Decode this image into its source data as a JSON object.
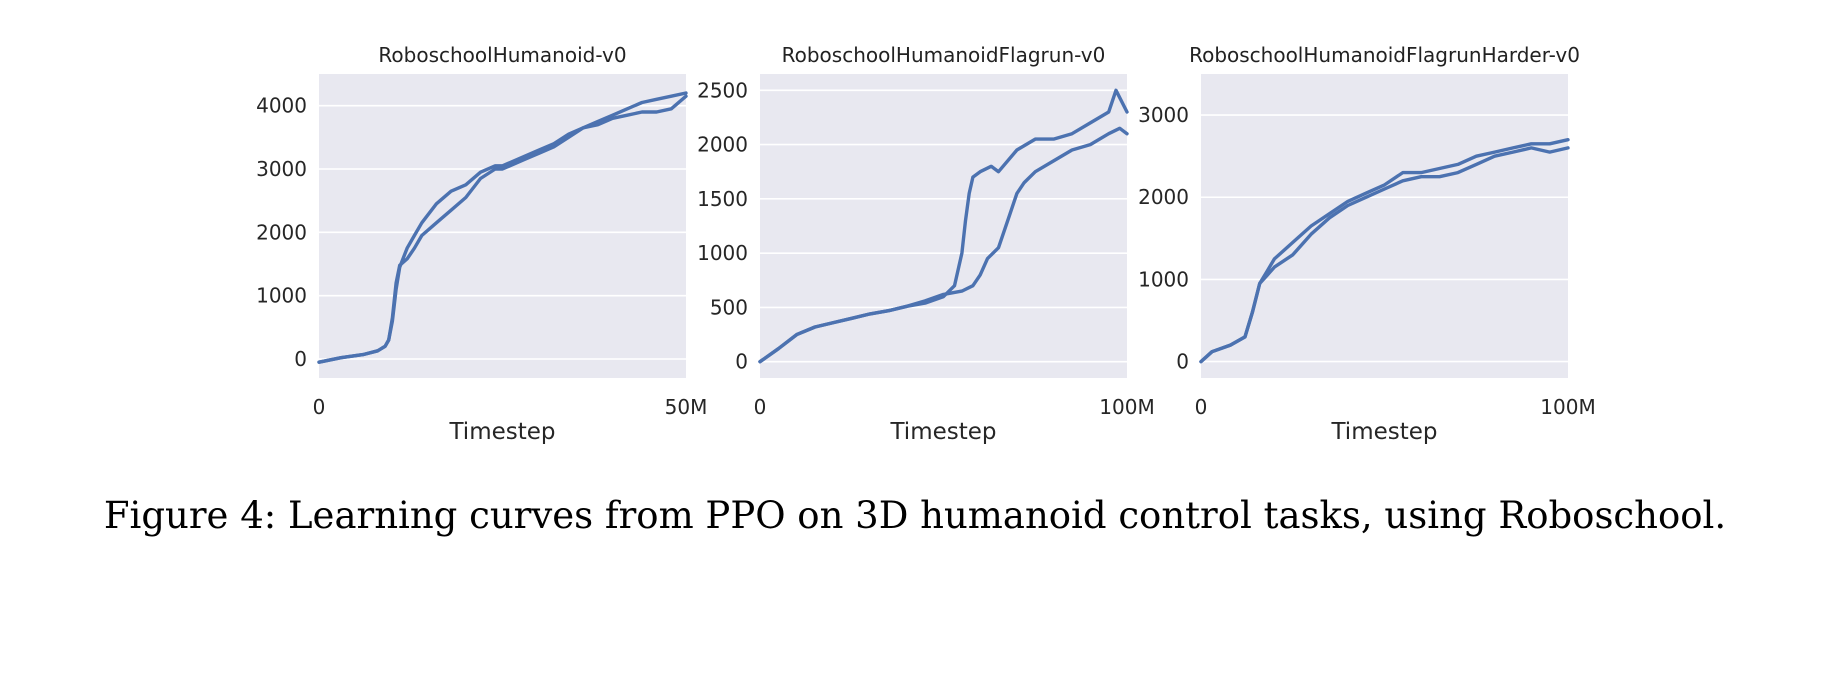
{
  "caption": "Figure 4: Learning curves from PPO on 3D humanoid control tasks, using Roboschool.",
  "colors": {
    "line": "#4c72b0",
    "background": "#e8e8f0",
    "grid": "#ffffff"
  },
  "chart_data": [
    {
      "type": "line",
      "title": "RoboschoolHumanoid-v0",
      "xlabel": "Timestep",
      "ylabel": "",
      "x_unit": "M timesteps",
      "xlim": [
        0,
        50
      ],
      "ylim": [
        -300,
        4500
      ],
      "xticks": [
        0,
        50
      ],
      "xtick_labels": [
        "0",
        "50M"
      ],
      "yticks": [
        0,
        1000,
        2000,
        3000,
        4000
      ],
      "ytick_labels": [
        "0",
        "1000",
        "2000",
        "3000",
        "4000"
      ],
      "grid": true,
      "series": [
        {
          "x": [
            0,
            3,
            6,
            8,
            9,
            9.5,
            10,
            10.5,
            11,
            12,
            13,
            14,
            16,
            18,
            20,
            22,
            24,
            25,
            28,
            30,
            32,
            34,
            36,
            38,
            40,
            42,
            44,
            46,
            48,
            50
          ],
          "y": [
            -50,
            20,
            70,
            130,
            200,
            300,
            600,
            1100,
            1450,
            1750,
            1950,
            2150,
            2450,
            2650,
            2750,
            2950,
            3050,
            3050,
            3200,
            3300,
            3400,
            3550,
            3650,
            3750,
            3850,
            3950,
            4050,
            4100,
            4150,
            4200
          ]
        },
        {
          "x": [
            0,
            3,
            6,
            8,
            9,
            9.5,
            10,
            10.5,
            11,
            12,
            13,
            14,
            16,
            18,
            20,
            22,
            24,
            25,
            28,
            30,
            32,
            34,
            36,
            38,
            40,
            42,
            44,
            46,
            48,
            50
          ],
          "y": [
            -50,
            20,
            70,
            130,
            200,
            300,
            650,
            1200,
            1480,
            1580,
            1750,
            1950,
            2150,
            2350,
            2550,
            2850,
            3000,
            3000,
            3150,
            3250,
            3350,
            3500,
            3650,
            3700,
            3800,
            3850,
            3900,
            3900,
            3950,
            4150
          ]
        }
      ]
    },
    {
      "type": "line",
      "title": "RoboschoolHumanoidFlagrun-v0",
      "xlabel": "Timestep",
      "ylabel": "",
      "x_unit": "M timesteps",
      "xlim": [
        0,
        100
      ],
      "ylim": [
        -150,
        2650
      ],
      "xticks": [
        0,
        100
      ],
      "xtick_labels": [
        "0",
        "100M"
      ],
      "yticks": [
        0,
        500,
        1000,
        1500,
        2000,
        2500
      ],
      "ytick_labels": [
        "0",
        "500",
        "1000",
        "1500",
        "2000",
        "2500"
      ],
      "grid": true,
      "series": [
        {
          "x": [
            0,
            5,
            10,
            15,
            20,
            25,
            30,
            35,
            40,
            45,
            50,
            53,
            55,
            56,
            57,
            58,
            60,
            63,
            65,
            70,
            75,
            80,
            85,
            90,
            95,
            97,
            100
          ],
          "y": [
            0,
            120,
            250,
            320,
            360,
            400,
            440,
            470,
            510,
            540,
            600,
            700,
            1000,
            1300,
            1550,
            1700,
            1750,
            1800,
            1750,
            1950,
            2050,
            2050,
            2100,
            2200,
            2300,
            2500,
            2300
          ]
        },
        {
          "x": [
            0,
            5,
            10,
            15,
            20,
            25,
            30,
            35,
            40,
            45,
            50,
            55,
            58,
            60,
            62,
            65,
            68,
            70,
            72,
            75,
            80,
            85,
            90,
            95,
            98,
            100
          ],
          "y": [
            0,
            120,
            250,
            320,
            360,
            400,
            440,
            470,
            510,
            560,
            620,
            650,
            700,
            800,
            950,
            1050,
            1350,
            1550,
            1650,
            1750,
            1850,
            1950,
            2000,
            2100,
            2150,
            2100
          ]
        }
      ]
    },
    {
      "type": "line",
      "title": "RoboschoolHumanoidFlagrunHarder-v0",
      "xlabel": "Timestep",
      "ylabel": "",
      "x_unit": "M timesteps",
      "xlim": [
        0,
        100
      ],
      "ylim": [
        -200,
        3500
      ],
      "xticks": [
        0,
        100
      ],
      "xtick_labels": [
        "0",
        "100M"
      ],
      "yticks": [
        0,
        1000,
        2000,
        3000
      ],
      "ytick_labels": [
        "0",
        "1000",
        "2000",
        "3000"
      ],
      "grid": true,
      "series": [
        {
          "x": [
            0,
            3,
            8,
            12,
            14,
            16,
            18,
            20,
            25,
            30,
            35,
            40,
            45,
            50,
            55,
            60,
            65,
            70,
            75,
            80,
            85,
            90,
            95,
            100
          ],
          "y": [
            0,
            120,
            200,
            300,
            600,
            950,
            1100,
            1250,
            1450,
            1650,
            1800,
            1950,
            2050,
            2150,
            2300,
            2300,
            2350,
            2400,
            2500,
            2550,
            2600,
            2650,
            2650,
            2700
          ]
        },
        {
          "x": [
            0,
            3,
            8,
            12,
            14,
            16,
            18,
            20,
            25,
            30,
            35,
            40,
            45,
            50,
            55,
            60,
            65,
            70,
            75,
            80,
            85,
            90,
            95,
            100
          ],
          "y": [
            0,
            120,
            200,
            300,
            600,
            950,
            1050,
            1150,
            1300,
            1550,
            1750,
            1900,
            2000,
            2100,
            2200,
            2250,
            2250,
            2300,
            2400,
            2500,
            2550,
            2600,
            2550,
            2600
          ]
        }
      ]
    }
  ]
}
